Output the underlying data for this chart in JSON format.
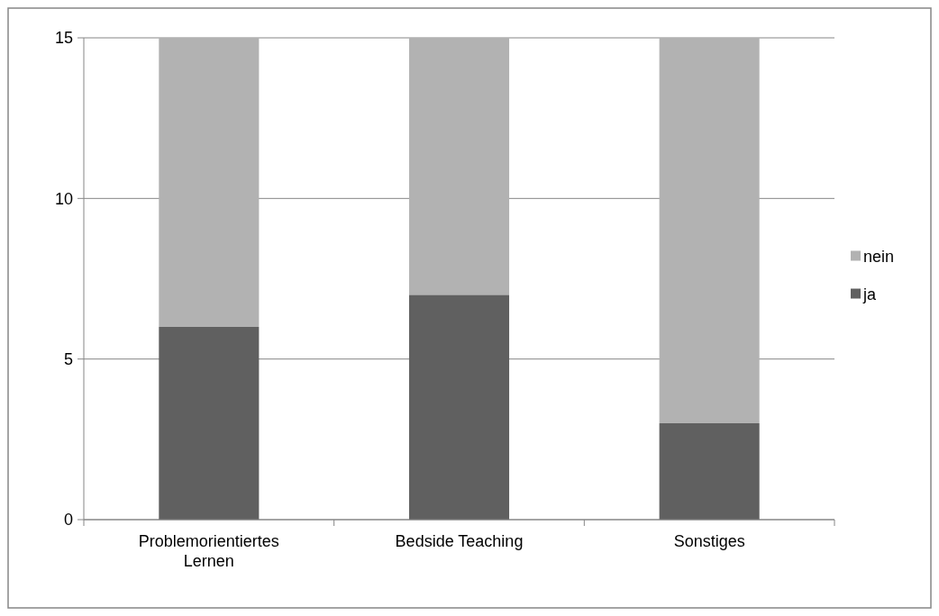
{
  "chart_data": {
    "type": "bar",
    "stacked": true,
    "categories": [
      "Problemorientiertes Lernen",
      "Bedside Teaching",
      "Sonstiges"
    ],
    "series": [
      {
        "name": "ja",
        "color": "#606060",
        "values": [
          6,
          7,
          3
        ]
      },
      {
        "name": "nein",
        "color": "#b2b2b2",
        "values": [
          9,
          8,
          12
        ]
      }
    ],
    "ylim": [
      0,
      15
    ],
    "yticks": [
      0,
      5,
      10,
      15
    ],
    "grid": "y",
    "legend": "right"
  }
}
